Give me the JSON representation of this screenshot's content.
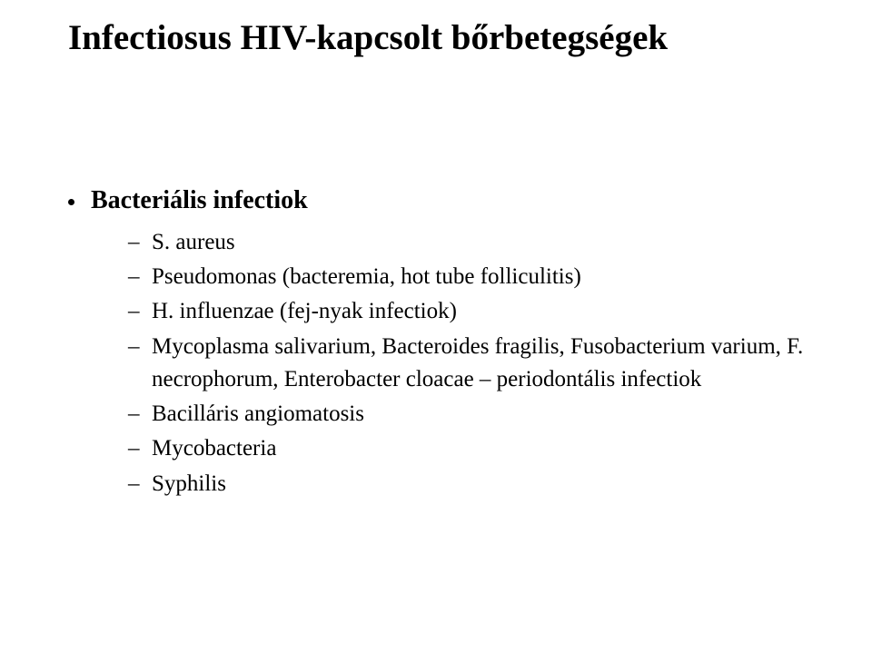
{
  "title": "Infectiosus HIV-kapcsolt bőrbetegségek",
  "section": {
    "label": "Bacteriális infectiok",
    "items": [
      "S. aureus",
      "Pseudomonas (bacteremia, hot tube folliculitis)",
      "H. influenzae (fej-nyak infectiok)",
      "Mycoplasma salivarium, Bacteroides fragilis, Fusobacterium varium, F. necrophorum, Enterobacter cloacae – periodontális infectiok",
      "Bacilláris angiomatosis",
      "Mycobacteria",
      "Syphilis"
    ]
  },
  "colors": {
    "background": "#ffffff",
    "text": "#000000"
  },
  "typography": {
    "title_fontsize_pt": 30,
    "section_fontsize_pt": 21,
    "item_fontsize_pt": 19,
    "font_family": "Times New Roman"
  }
}
